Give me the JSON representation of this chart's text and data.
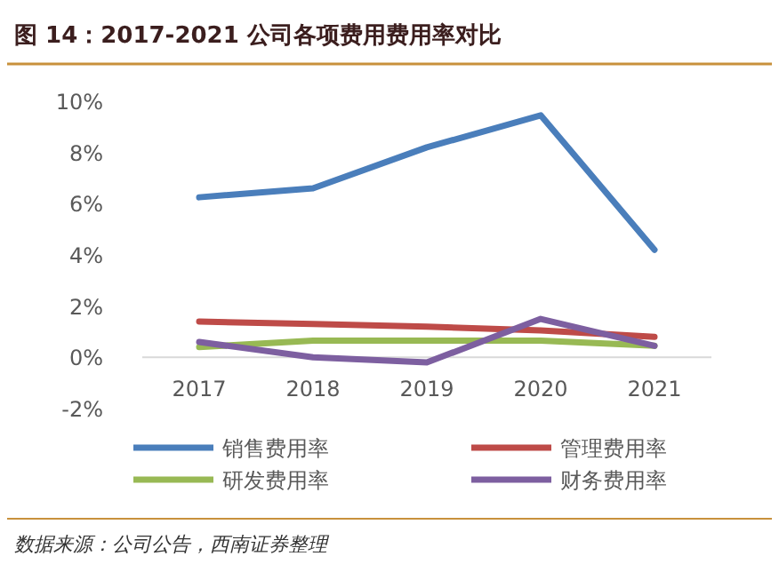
{
  "chart_data": {
    "type": "line",
    "title": "图 14：2017-2021 公司各项费用费用率对比",
    "categories": [
      "2017",
      "2018",
      "2019",
      "2020",
      "2021"
    ],
    "series": [
      {
        "name": "销售费用率",
        "color": "#4a7ebb",
        "values": [
          6.25,
          6.6,
          8.2,
          9.45,
          4.2
        ]
      },
      {
        "name": "管理费用率",
        "color": "#be4b48",
        "values": [
          1.4,
          1.3,
          1.2,
          1.05,
          0.8
        ]
      },
      {
        "name": "研发费用率",
        "color": "#98b954",
        "values": [
          0.4,
          0.65,
          0.65,
          0.65,
          0.45
        ]
      },
      {
        "name": "财务费用率",
        "color": "#7d5fa0",
        "values": [
          0.6,
          0.0,
          -0.2,
          1.5,
          0.45
        ]
      }
    ],
    "ylim": [
      -2,
      10
    ],
    "yticks": [
      {
        "value": -2,
        "label": "-2%"
      },
      {
        "value": 0,
        "label": "0%"
      },
      {
        "value": 2,
        "label": "2%"
      },
      {
        "value": 4,
        "label": "4%"
      },
      {
        "value": 6,
        "label": "6%"
      },
      {
        "value": 8,
        "label": "8%"
      },
      {
        "value": 10,
        "label": "10%"
      }
    ],
    "legend": "bottom",
    "grid": false,
    "marker": "none",
    "line_style": "solid",
    "annotations": [
      "数据来源：公司公告，西南证券整理"
    ]
  }
}
